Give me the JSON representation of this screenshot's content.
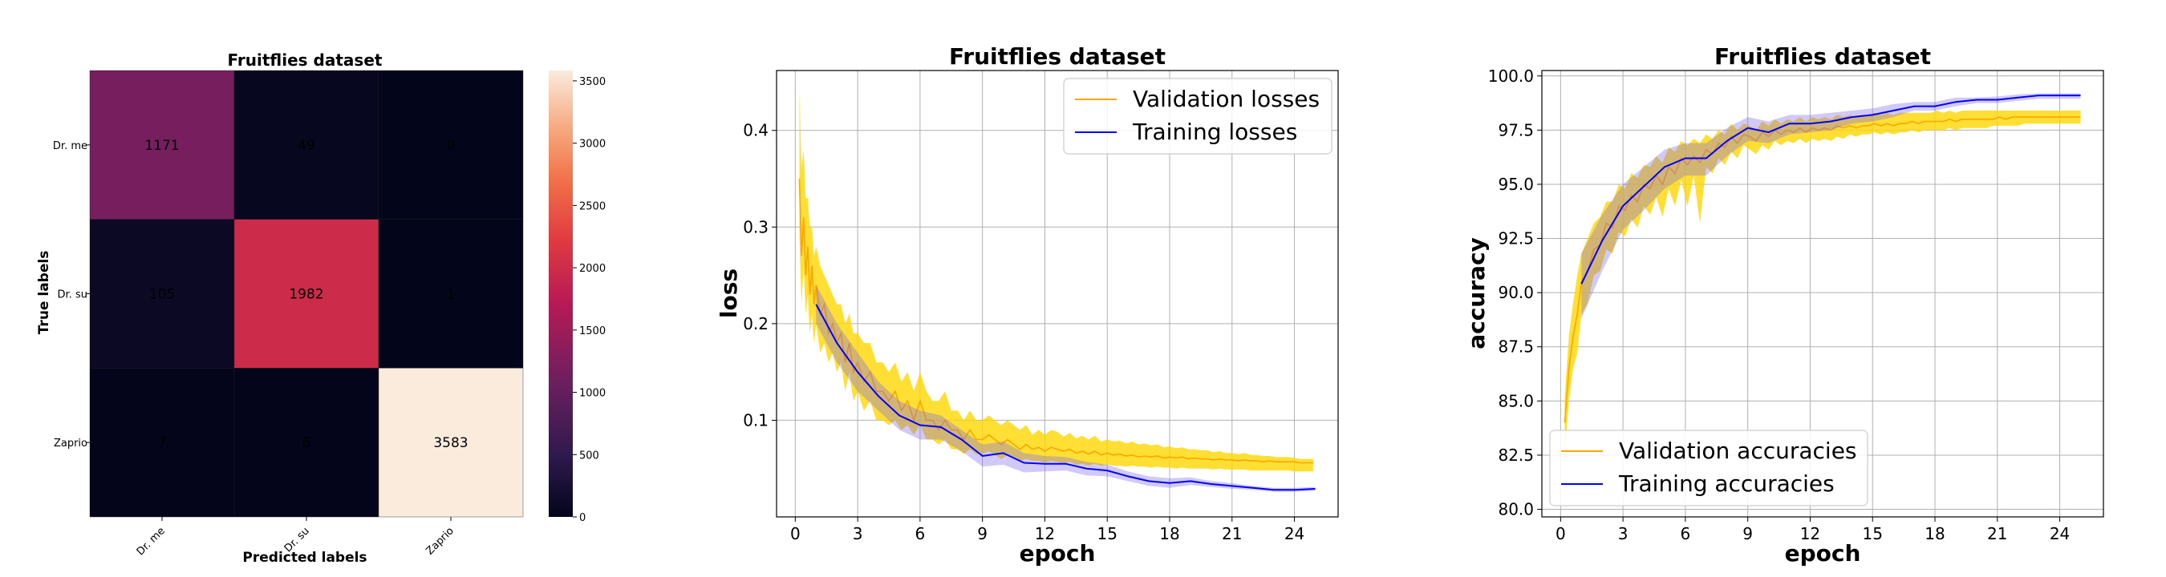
{
  "chart_data": [
    {
      "type": "heatmap",
      "title": "Fruitflies dataset",
      "xlabel": "Predicted labels",
      "ylabel": "True labels",
      "row_labels": [
        "Dr. me",
        "Dr. su",
        "Zaprio"
      ],
      "col_labels": [
        "Dr. me",
        "Dr. su",
        "Zaprio"
      ],
      "values": [
        [
          1171,
          49,
          0
        ],
        [
          105,
          1982,
          1
        ],
        [
          7,
          6,
          3583
        ]
      ],
      "colorbar": {
        "min": 0,
        "max": 3583,
        "ticks": [
          0,
          500,
          1000,
          1500,
          2000,
          2500,
          3000,
          3500
        ],
        "colormap": "rocket"
      }
    },
    {
      "type": "line",
      "title": "Fruitflies dataset",
      "xlabel": "epoch",
      "ylabel": "loss",
      "xlim": [
        -0.9,
        26.1
      ],
      "ylim": [
        0.0,
        0.462
      ],
      "xticks": [
        0,
        3,
        6,
        9,
        12,
        15,
        18,
        21,
        24
      ],
      "yticks": [
        0.1,
        0.2,
        0.3,
        0.4
      ],
      "ytick_labels": [
        "0.1",
        "0.2",
        "0.3",
        "0.4"
      ],
      "grid": true,
      "legend": "top-right",
      "series": [
        {
          "name": "Validation losses",
          "color": "#FFA500",
          "band_color": "#FFD700",
          "x": [
            0.2,
            0.3,
            0.4,
            0.5,
            0.6,
            0.7,
            0.8,
            0.9,
            1.0,
            1.2,
            1.4,
            1.6,
            1.8,
            2.0,
            2.2,
            2.4,
            2.6,
            2.8,
            3.0,
            3.3,
            3.6,
            3.9,
            4.2,
            4.5,
            4.8,
            5.1,
            5.4,
            5.7,
            6.0,
            6.3,
            6.6,
            6.9,
            7.2,
            7.5,
            7.8,
            8.1,
            8.4,
            8.7,
            9.0,
            9.3,
            9.6,
            9.9,
            10.2,
            10.5,
            10.8,
            11.1,
            11.4,
            11.7,
            12.0,
            12.3,
            12.6,
            12.9,
            13.2,
            13.5,
            13.8,
            14.1,
            14.4,
            14.7,
            15.0,
            15.3,
            15.6,
            15.9,
            16.2,
            16.5,
            16.8,
            17.1,
            17.4,
            17.7,
            18.0,
            18.3,
            18.6,
            18.9,
            19.2,
            19.5,
            19.8,
            20.1,
            20.4,
            20.7,
            21.0,
            21.3,
            21.6,
            21.9,
            22.2,
            22.5,
            22.8,
            23.1,
            23.4,
            23.7,
            24.0,
            24.3,
            24.6,
            24.9
          ],
          "mean": [
            0.35,
            0.27,
            0.31,
            0.25,
            0.28,
            0.23,
            0.26,
            0.22,
            0.24,
            0.21,
            0.22,
            0.19,
            0.2,
            0.18,
            0.19,
            0.16,
            0.18,
            0.15,
            0.16,
            0.14,
            0.15,
            0.13,
            0.13,
            0.12,
            0.13,
            0.11,
            0.12,
            0.1,
            0.12,
            0.1,
            0.1,
            0.09,
            0.1,
            0.09,
            0.09,
            0.08,
            0.09,
            0.08,
            0.08,
            0.085,
            0.08,
            0.075,
            0.08,
            0.075,
            0.07,
            0.075,
            0.07,
            0.072,
            0.068,
            0.072,
            0.07,
            0.068,
            0.07,
            0.066,
            0.068,
            0.065,
            0.068,
            0.064,
            0.066,
            0.064,
            0.065,
            0.063,
            0.064,
            0.062,
            0.063,
            0.062,
            0.063,
            0.061,
            0.062,
            0.061,
            0.062,
            0.06,
            0.061,
            0.06,
            0.06,
            0.059,
            0.06,
            0.059,
            0.059,
            0.058,
            0.059,
            0.058,
            0.058,
            0.057,
            0.058,
            0.057,
            0.057,
            0.057,
            0.057,
            0.056,
            0.056,
            0.056
          ],
          "upper": [
            0.44,
            0.36,
            0.38,
            0.33,
            0.33,
            0.3,
            0.3,
            0.27,
            0.28,
            0.26,
            0.25,
            0.24,
            0.23,
            0.22,
            0.22,
            0.2,
            0.21,
            0.19,
            0.19,
            0.18,
            0.18,
            0.16,
            0.16,
            0.15,
            0.16,
            0.14,
            0.15,
            0.13,
            0.15,
            0.13,
            0.12,
            0.12,
            0.13,
            0.11,
            0.11,
            0.1,
            0.11,
            0.1,
            0.1,
            0.105,
            0.1,
            0.095,
            0.1,
            0.095,
            0.09,
            0.095,
            0.085,
            0.09,
            0.085,
            0.09,
            0.088,
            0.083,
            0.087,
            0.081,
            0.084,
            0.08,
            0.084,
            0.078,
            0.08,
            0.078,
            0.079,
            0.076,
            0.078,
            0.075,
            0.076,
            0.074,
            0.075,
            0.072,
            0.073,
            0.071,
            0.072,
            0.07,
            0.07,
            0.069,
            0.069,
            0.067,
            0.068,
            0.066,
            0.066,
            0.065,
            0.066,
            0.064,
            0.064,
            0.063,
            0.063,
            0.062,
            0.062,
            0.062,
            0.061,
            0.06,
            0.06,
            0.06
          ],
          "lower": [
            0.29,
            0.22,
            0.26,
            0.21,
            0.23,
            0.19,
            0.21,
            0.18,
            0.2,
            0.17,
            0.18,
            0.16,
            0.17,
            0.15,
            0.16,
            0.13,
            0.15,
            0.12,
            0.13,
            0.11,
            0.12,
            0.1,
            0.1,
            0.095,
            0.1,
            0.09,
            0.095,
            0.085,
            0.095,
            0.08,
            0.08,
            0.075,
            0.08,
            0.07,
            0.07,
            0.065,
            0.07,
            0.065,
            0.065,
            0.068,
            0.064,
            0.06,
            0.064,
            0.06,
            0.058,
            0.06,
            0.058,
            0.058,
            0.056,
            0.058,
            0.057,
            0.055,
            0.057,
            0.054,
            0.055,
            0.053,
            0.055,
            0.053,
            0.054,
            0.053,
            0.053,
            0.052,
            0.053,
            0.052,
            0.052,
            0.051,
            0.052,
            0.051,
            0.051,
            0.05,
            0.051,
            0.05,
            0.05,
            0.05,
            0.05,
            0.049,
            0.05,
            0.049,
            0.049,
            0.049,
            0.049,
            0.048,
            0.048,
            0.048,
            0.048,
            0.048,
            0.048,
            0.048,
            0.047,
            0.047,
            0.047,
            0.047
          ]
        },
        {
          "name": "Training losses",
          "color": "#0000FF",
          "band_color": "#7B68EE",
          "x": [
            1,
            2,
            3,
            4,
            5,
            6,
            7,
            8,
            9,
            10,
            11,
            12,
            13,
            14,
            15,
            16,
            17,
            18,
            19,
            20,
            21,
            22,
            23,
            24,
            25
          ],
          "mean": [
            0.22,
            0.18,
            0.15,
            0.125,
            0.105,
            0.095,
            0.093,
            0.08,
            0.063,
            0.066,
            0.056,
            0.055,
            0.055,
            0.05,
            0.048,
            0.042,
            0.037,
            0.035,
            0.037,
            0.034,
            0.032,
            0.03,
            0.028,
            0.028,
            0.029
          ],
          "upper": [
            0.24,
            0.2,
            0.17,
            0.14,
            0.12,
            0.11,
            0.105,
            0.09,
            0.075,
            0.078,
            0.066,
            0.063,
            0.062,
            0.057,
            0.054,
            0.047,
            0.042,
            0.04,
            0.041,
            0.037,
            0.035,
            0.032,
            0.03,
            0.03,
            0.031
          ],
          "lower": [
            0.2,
            0.16,
            0.13,
            0.11,
            0.09,
            0.08,
            0.08,
            0.068,
            0.052,
            0.054,
            0.046,
            0.047,
            0.048,
            0.043,
            0.042,
            0.037,
            0.032,
            0.03,
            0.033,
            0.031,
            0.029,
            0.028,
            0.026,
            0.026,
            0.027
          ]
        }
      ]
    },
    {
      "type": "line",
      "title": "Fruitflies dataset",
      "xlabel": "epoch",
      "ylabel": "accuracy",
      "xlim": [
        -0.9,
        26.1
      ],
      "ylim": [
        79.65,
        100.25
      ],
      "xticks": [
        0,
        3,
        6,
        9,
        12,
        15,
        18,
        21,
        24
      ],
      "yticks": [
        80.0,
        82.5,
        85.0,
        87.5,
        90.0,
        92.5,
        95.0,
        97.5,
        100.0
      ],
      "ytick_labels": [
        "80.0",
        "82.5",
        "85.0",
        "87.5",
        "90.0",
        "92.5",
        "95.0",
        "97.5",
        "100.0"
      ],
      "grid": true,
      "legend": "bottom-left",
      "series": [
        {
          "name": "Validation accuracies",
          "color": "#FFA500",
          "band_color": "#FFD700",
          "x": [
            0.2,
            0.4,
            0.6,
            0.8,
            1.0,
            1.3,
            1.6,
            1.9,
            2.2,
            2.5,
            2.8,
            3.1,
            3.4,
            3.7,
            4.0,
            4.3,
            4.6,
            4.9,
            5.2,
            5.5,
            5.8,
            6.1,
            6.4,
            6.7,
            7.0,
            7.3,
            7.6,
            7.9,
            8.2,
            8.5,
            8.8,
            9.1,
            9.4,
            9.7,
            10.0,
            10.3,
            10.6,
            10.9,
            11.2,
            11.5,
            11.8,
            12.1,
            12.4,
            12.7,
            13.0,
            13.3,
            13.6,
            13.9,
            14.2,
            14.5,
            14.8,
            15.1,
            15.4,
            15.7,
            16.0,
            16.3,
            16.6,
            16.9,
            17.2,
            17.5,
            17.8,
            18.1,
            18.4,
            18.7,
            19.0,
            19.3,
            19.6,
            19.9,
            20.2,
            20.5,
            20.8,
            21.1,
            21.4,
            21.7,
            22.0,
            22.3,
            22.6,
            22.9,
            23.2,
            23.5,
            23.8,
            24.1,
            24.4,
            24.7,
            25.0
          ],
          "mean": [
            84.0,
            86.5,
            88.0,
            89.0,
            90.5,
            91.0,
            92.0,
            92.2,
            93.2,
            93.0,
            94.0,
            93.8,
            94.5,
            94.2,
            95.0,
            94.8,
            95.4,
            95.0,
            95.8,
            95.5,
            96.2,
            95.9,
            96.3,
            96.0,
            96.6,
            96.4,
            96.9,
            96.7,
            97.2,
            96.9,
            97.3,
            97.2,
            97.0,
            97.4,
            97.2,
            97.5,
            97.3,
            97.5,
            97.4,
            97.6,
            97.4,
            97.6,
            97.5,
            97.6,
            97.5,
            97.7,
            97.6,
            97.7,
            97.6,
            97.7,
            97.7,
            97.8,
            97.7,
            97.8,
            97.7,
            97.8,
            97.8,
            97.9,
            97.8,
            97.9,
            97.9,
            97.9,
            97.9,
            98.0,
            97.9,
            98.0,
            98.0,
            98.0,
            98.0,
            98.0,
            98.0,
            98.1,
            98.0,
            98.1,
            98.1,
            98.1,
            98.1,
            98.1,
            98.1,
            98.1,
            98.1,
            98.1,
            98.1,
            98.1,
            98.1
          ],
          "upper": [
            85.2,
            88.0,
            89.5,
            90.8,
            91.8,
            92.5,
            93.2,
            93.5,
            94.2,
            94.2,
            95.0,
            94.8,
            95.5,
            95.3,
            95.9,
            95.8,
            96.3,
            96.0,
            96.7,
            96.5,
            97.0,
            96.8,
            97.1,
            96.9,
            97.3,
            97.1,
            97.5,
            97.3,
            97.8,
            97.5,
            97.8,
            97.7,
            97.5,
            97.9,
            97.7,
            98.0,
            97.8,
            98.0,
            97.9,
            98.1,
            97.9,
            98.1,
            98.0,
            98.1,
            98.0,
            98.2,
            98.1,
            98.2,
            98.1,
            98.2,
            98.2,
            98.3,
            98.2,
            98.3,
            98.2,
            98.3,
            98.3,
            98.3,
            98.3,
            98.3,
            98.3,
            98.4,
            98.3,
            98.4,
            98.3,
            98.4,
            98.4,
            98.4,
            98.4,
            98.4,
            98.4,
            98.4,
            98.4,
            98.4,
            98.4,
            98.4,
            98.4,
            98.4,
            98.4,
            98.4,
            98.4,
            98.4,
            98.4,
            98.4,
            98.4
          ],
          "lower": [
            82.6,
            85.0,
            86.5,
            87.2,
            89.0,
            89.5,
            90.8,
            91.0,
            92.0,
            91.8,
            92.8,
            92.6,
            93.4,
            93.0,
            94.0,
            93.6,
            94.4,
            93.5,
            94.8,
            94.0,
            95.2,
            94.0,
            95.4,
            93.2,
            95.8,
            95.5,
            96.2,
            95.9,
            96.5,
            96.2,
            96.8,
            96.6,
            96.4,
            96.8,
            96.6,
            97.0,
            96.8,
            97.0,
            96.9,
            97.1,
            96.9,
            97.1,
            97.0,
            97.1,
            97.0,
            97.2,
            97.1,
            97.3,
            97.2,
            97.3,
            97.3,
            97.4,
            97.3,
            97.4,
            97.3,
            97.4,
            97.4,
            97.5,
            97.4,
            97.5,
            97.5,
            97.5,
            97.5,
            97.6,
            97.5,
            97.6,
            97.6,
            97.6,
            97.6,
            97.6,
            97.7,
            97.7,
            97.7,
            97.7,
            97.7,
            97.8,
            97.8,
            97.8,
            97.8,
            97.8,
            97.8,
            97.8,
            97.8,
            97.8,
            97.8
          ]
        },
        {
          "name": "Training accuracies",
          "color": "#0000FF",
          "band_color": "#7B68EE",
          "x": [
            1,
            2,
            3,
            4,
            5,
            6,
            7,
            8,
            9,
            10,
            11,
            12,
            13,
            14,
            15,
            16,
            17,
            18,
            19,
            20,
            21,
            22,
            23,
            24,
            25
          ],
          "mean": [
            90.4,
            92.4,
            94.0,
            94.9,
            95.8,
            96.2,
            96.2,
            97.0,
            97.6,
            97.4,
            97.8,
            97.8,
            97.9,
            98.1,
            98.2,
            98.4,
            98.6,
            98.6,
            98.8,
            98.9,
            98.9,
            99.0,
            99.1,
            99.1,
            99.1
          ],
          "upper": [
            91.8,
            93.6,
            95.0,
            95.8,
            96.6,
            96.9,
            96.9,
            97.6,
            98.1,
            97.9,
            98.2,
            98.2,
            98.3,
            98.4,
            98.5,
            98.7,
            98.8,
            98.8,
            99.0,
            99.0,
            99.05,
            99.15,
            99.2,
            99.2,
            99.2
          ],
          "lower": [
            88.8,
            91.0,
            92.9,
            93.8,
            94.8,
            95.4,
            95.4,
            96.3,
            97.0,
            96.9,
            97.3,
            97.4,
            97.5,
            97.8,
            97.9,
            98.1,
            98.4,
            98.4,
            98.6,
            98.75,
            98.75,
            98.85,
            98.95,
            98.95,
            98.95
          ]
        }
      ]
    }
  ]
}
